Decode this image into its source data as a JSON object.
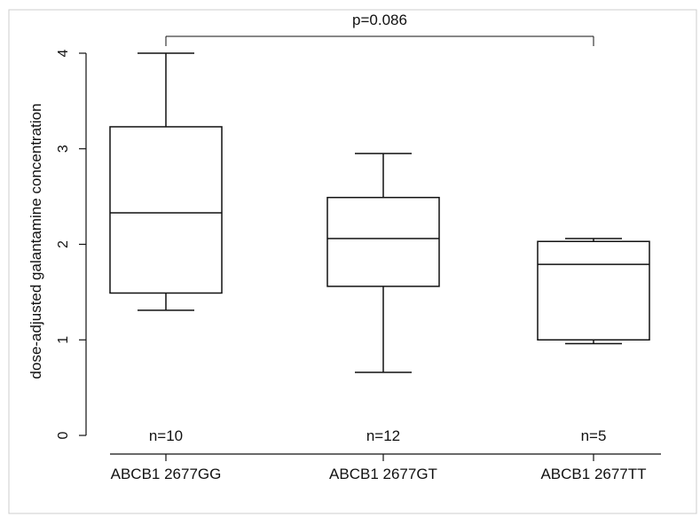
{
  "chart_data": {
    "type": "box",
    "ylabel": "dose-adjusted galantamine concentration",
    "ylim": [
      0,
      4
    ],
    "yticks": [
      "0",
      "1",
      "2",
      "3",
      "4"
    ],
    "categories": [
      "ABCB1 2677GG",
      "ABCB1 2677GT",
      "ABCB1 2677TT"
    ],
    "boxes": [
      {
        "label": "ABCB1 2677GG",
        "n_label": "n=10",
        "min": 1.31,
        "q1": 1.49,
        "median": 2.33,
        "q3": 3.23,
        "max": 4.0
      },
      {
        "label": "ABCB1 2677GT",
        "n_label": "n=12",
        "min": 0.66,
        "q1": 1.56,
        "median": 2.06,
        "q3": 2.49,
        "max": 2.95
      },
      {
        "label": "ABCB1 2677TT",
        "n_label": "n=5",
        "min": 0.96,
        "q1": 1.0,
        "median": 1.79,
        "q3": 2.03,
        "max": 2.06
      }
    ],
    "annotation": {
      "text": "p=0.086",
      "from": "ABCB1 2677GG",
      "to": "ABCB1 2677TT"
    },
    "grid": false,
    "colors": {
      "line": "#111111",
      "frame": "#cccccc",
      "background": "#ffffff"
    }
  }
}
